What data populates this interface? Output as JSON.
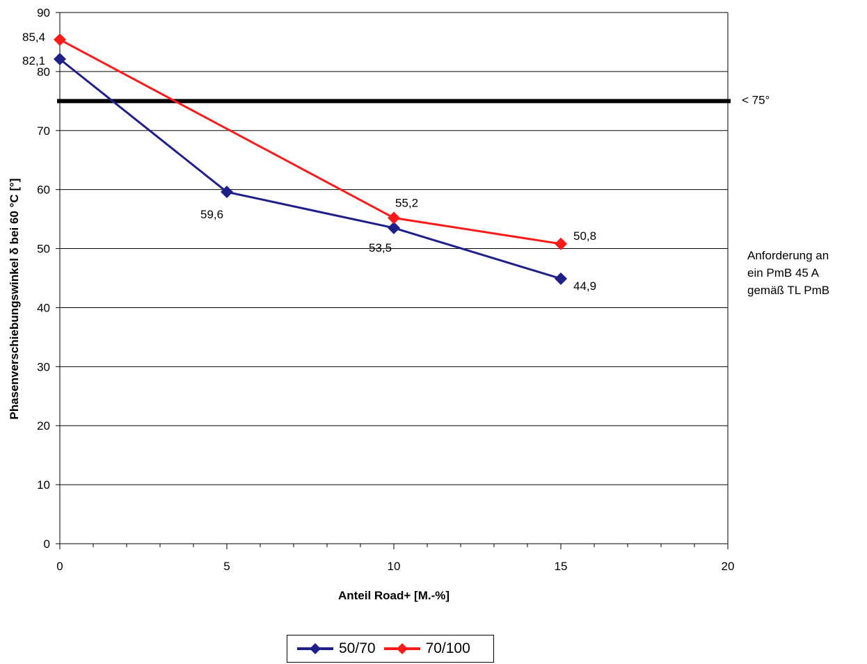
{
  "chart_data": {
    "type": "line",
    "title": "",
    "xlabel": "Anteil Road+ [M.-%]",
    "ylabel": "Phasenverschiebungswinkel δ bei 60 °C [°]",
    "xlim": [
      0,
      20
    ],
    "ylim": [
      0,
      90
    ],
    "x_ticks": [
      0,
      5,
      10,
      15,
      20
    ],
    "y_ticks": [
      0,
      10,
      20,
      30,
      40,
      50,
      60,
      70,
      80,
      90
    ],
    "grid": "horizontal",
    "legend_position": "bottom",
    "series": [
      {
        "name": "50/70",
        "color": "#1f1f8a",
        "marker": "diamond",
        "points": [
          {
            "x": 0,
            "y": 82.1,
            "label": "82,1"
          },
          {
            "x": 5,
            "y": 59.6,
            "label": "59,6"
          },
          {
            "x": 10,
            "y": 53.5,
            "label": "53,5"
          },
          {
            "x": 15,
            "y": 44.9,
            "label": "44,9"
          }
        ]
      },
      {
        "name": "70/100",
        "color": "#ff1a1a",
        "marker": "diamond",
        "points": [
          {
            "x": 0,
            "y": 85.4,
            "label": "85,4"
          },
          {
            "x": 10,
            "y": 55.2,
            "label": "55,2"
          },
          {
            "x": 15,
            "y": 50.8,
            "label": "50,8"
          }
        ]
      }
    ],
    "threshold": {
      "y": 75,
      "label": "< 75°",
      "color": "#000000"
    },
    "annotation_lines": [
      "Anforderung an",
      "ein PmB 45 A",
      "gemäß TL PmB"
    ]
  }
}
